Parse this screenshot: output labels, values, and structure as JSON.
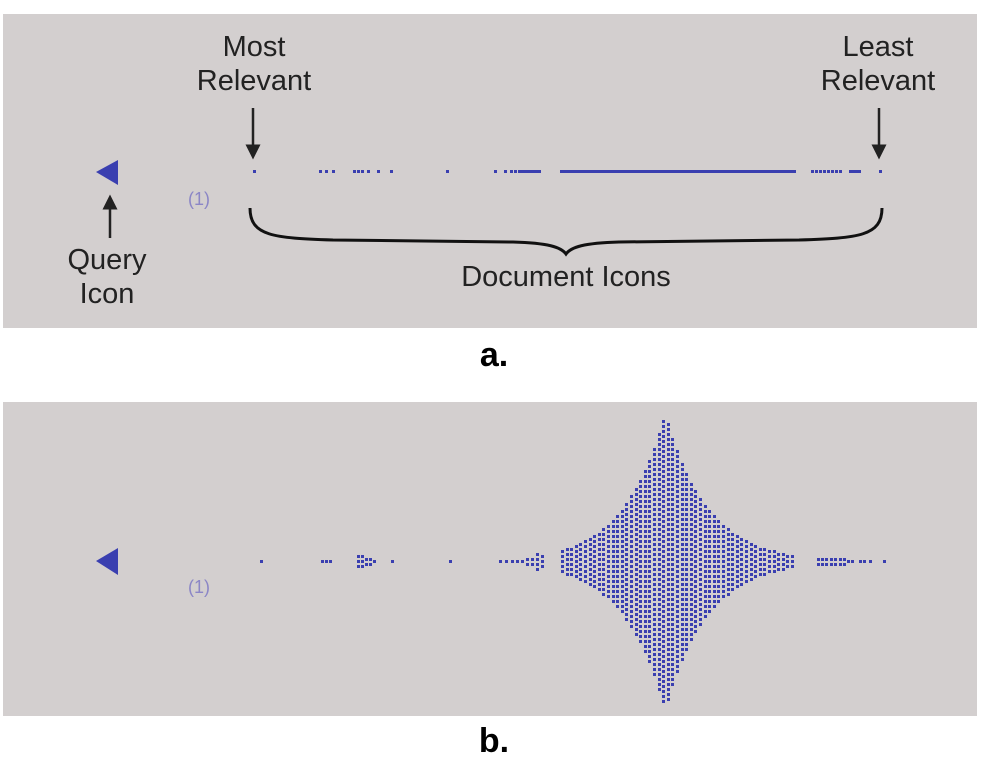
{
  "panel_a": {
    "sublabel": "a.",
    "query_number": "(1)",
    "most_relevant": [
      "Most",
      "Relevant"
    ],
    "least_relevant": [
      "Least",
      "Relevant"
    ],
    "query_icon_label": [
      "Query",
      "Icon"
    ],
    "document_icons_label": "Document Icons"
  },
  "panel_b": {
    "sublabel": "b.",
    "query_number": "(1)"
  },
  "colors": {
    "panel_background": "#d3cfcf",
    "icon_blue": "#3a3fb0",
    "number_text": "#8b86c6",
    "annotation_text": "#222222"
  }
}
